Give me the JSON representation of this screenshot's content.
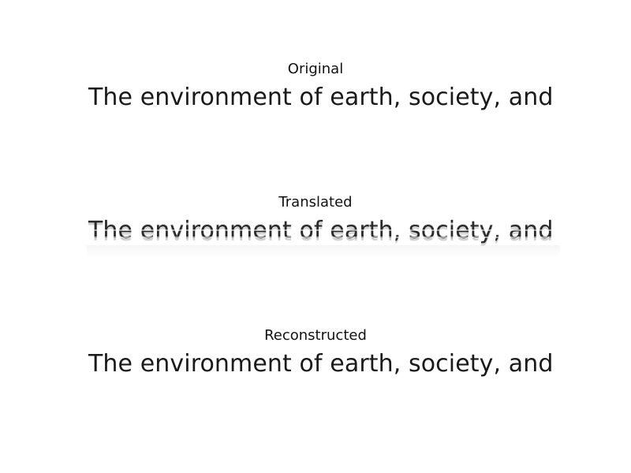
{
  "panels": [
    {
      "title": "Original",
      "text": "The environment of earth, society, and"
    },
    {
      "title": "Translated",
      "text": "The environment of earth, society, and"
    },
    {
      "title": "Reconstructed",
      "text": "The environment of earth, society, and"
    }
  ]
}
